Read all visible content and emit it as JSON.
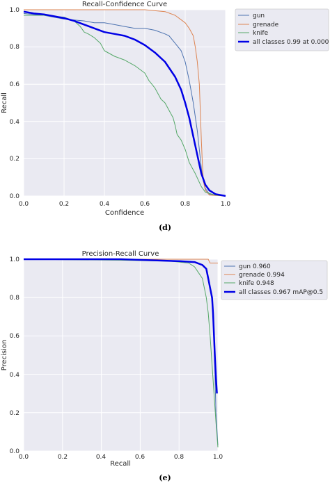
{
  "colors": {
    "plot_bg": "#eaeaf2",
    "grid": "#ffffff",
    "gun": "#4c72b0",
    "grenade": "#dd8452",
    "knife": "#55a868",
    "all": "#0000e6"
  },
  "chart_data": [
    {
      "type": "line",
      "title": "Recall-Confidence Curve",
      "xlabel": "Confidence",
      "ylabel": "Recall",
      "xlim": [
        0,
        1
      ],
      "ylim": [
        0,
        1
      ],
      "xticks": [
        "0.0",
        "0.2",
        "0.4",
        "0.6",
        "0.8",
        "1.0"
      ],
      "yticks": [
        "0.0",
        "0.2",
        "0.4",
        "0.6",
        "0.8",
        "1.0"
      ],
      "grid": true,
      "legend_position": "outside-right",
      "caption": "(d)",
      "series": [
        {
          "name": "gun",
          "color": "#4c72b0",
          "width": 1,
          "x": [
            0,
            0.05,
            0.1,
            0.15,
            0.2,
            0.3,
            0.35,
            0.4,
            0.45,
            0.5,
            0.55,
            0.6,
            0.65,
            0.7,
            0.72,
            0.75,
            0.78,
            0.8,
            0.82,
            0.84,
            0.86,
            0.87,
            0.88,
            0.89,
            0.9,
            0.92,
            0.95,
            1.0
          ],
          "y": [
            0.98,
            0.975,
            0.97,
            0.96,
            0.95,
            0.94,
            0.93,
            0.93,
            0.92,
            0.91,
            0.9,
            0.9,
            0.89,
            0.87,
            0.86,
            0.82,
            0.78,
            0.72,
            0.62,
            0.5,
            0.35,
            0.25,
            0.15,
            0.08,
            0.04,
            0.01,
            0.005,
            0.0
          ]
        },
        {
          "name": "grenade",
          "color": "#dd8452",
          "width": 1,
          "x": [
            0,
            0.1,
            0.2,
            0.3,
            0.4,
            0.5,
            0.6,
            0.7,
            0.75,
            0.8,
            0.82,
            0.84,
            0.85,
            0.86,
            0.87,
            0.875,
            0.88,
            0.885,
            0.89,
            0.9,
            0.92,
            1.0
          ],
          "y": [
            1.0,
            1.0,
            1.0,
            1.0,
            1.0,
            1.0,
            1.0,
            0.99,
            0.97,
            0.93,
            0.9,
            0.86,
            0.8,
            0.72,
            0.6,
            0.45,
            0.3,
            0.18,
            0.08,
            0.03,
            0.005,
            0.0
          ]
        },
        {
          "name": "knife",
          "color": "#55a868",
          "width": 1,
          "x": [
            0,
            0.1,
            0.2,
            0.25,
            0.28,
            0.3,
            0.32,
            0.35,
            0.38,
            0.4,
            0.45,
            0.5,
            0.55,
            0.6,
            0.62,
            0.65,
            0.68,
            0.7,
            0.72,
            0.74,
            0.75,
            0.76,
            0.78,
            0.8,
            0.82,
            0.85,
            0.88,
            0.9,
            0.95,
            1.0
          ],
          "y": [
            0.97,
            0.97,
            0.96,
            0.94,
            0.91,
            0.88,
            0.87,
            0.85,
            0.82,
            0.78,
            0.75,
            0.73,
            0.7,
            0.66,
            0.62,
            0.58,
            0.52,
            0.5,
            0.46,
            0.42,
            0.38,
            0.33,
            0.3,
            0.25,
            0.18,
            0.12,
            0.05,
            0.02,
            0.005,
            0.0
          ]
        },
        {
          "name": "all classes 0.99 at 0.000",
          "color": "#0000e6",
          "width": 2.5,
          "x": [
            0,
            0.05,
            0.1,
            0.15,
            0.2,
            0.25,
            0.3,
            0.35,
            0.4,
            0.45,
            0.5,
            0.55,
            0.6,
            0.65,
            0.7,
            0.75,
            0.78,
            0.8,
            0.82,
            0.84,
            0.86,
            0.88,
            0.9,
            0.92,
            0.95,
            1.0
          ],
          "y": [
            0.99,
            0.98,
            0.975,
            0.965,
            0.955,
            0.94,
            0.92,
            0.9,
            0.88,
            0.87,
            0.86,
            0.84,
            0.81,
            0.77,
            0.72,
            0.64,
            0.57,
            0.5,
            0.42,
            0.32,
            0.22,
            0.12,
            0.06,
            0.03,
            0.01,
            0.0
          ]
        }
      ]
    },
    {
      "type": "line",
      "title": "Precision-Recall Curve",
      "xlabel": "Recall",
      "ylabel": "Precision",
      "xlim": [
        0,
        1
      ],
      "ylim": [
        0,
        1
      ],
      "xticks": [
        "0.0",
        "0.2",
        "0.4",
        "0.6",
        "0.8",
        "1.0"
      ],
      "yticks": [
        "0.0",
        "0.2",
        "0.4",
        "0.6",
        "0.8",
        "1.0"
      ],
      "grid": true,
      "legend_position": "top-right",
      "caption": "(e)",
      "series": [
        {
          "name": "gun 0.960",
          "color": "#4c72b0",
          "width": 1,
          "x": [
            0,
            0.5,
            0.8,
            0.88,
            0.92,
            0.94,
            0.95,
            0.96,
            0.97,
            0.975,
            0.98,
            0.985,
            0.99,
            1.0
          ],
          "y": [
            1.0,
            1.0,
            0.99,
            0.985,
            0.97,
            0.95,
            0.9,
            0.85,
            0.78,
            0.7,
            0.55,
            0.4,
            0.2,
            0.03
          ]
        },
        {
          "name": "grenade 0.994",
          "color": "#dd8452",
          "width": 1,
          "x": [
            0,
            0.5,
            0.9,
            0.95,
            0.955,
            0.96,
            0.98,
            0.99,
            1.0
          ],
          "y": [
            1.0,
            1.0,
            1.0,
            1.0,
            0.99,
            0.98,
            0.98,
            0.98,
            0.98
          ]
        },
        {
          "name": "knife 0.948",
          "color": "#55a868",
          "width": 1,
          "x": [
            0,
            0.5,
            0.75,
            0.8,
            0.85,
            0.88,
            0.9,
            0.92,
            0.93,
            0.94,
            0.95,
            0.96,
            0.97,
            0.98,
            0.99,
            1.0
          ],
          "y": [
            1.0,
            0.995,
            0.99,
            0.985,
            0.98,
            0.96,
            0.93,
            0.9,
            0.85,
            0.8,
            0.72,
            0.6,
            0.45,
            0.3,
            0.15,
            0.02
          ]
        },
        {
          "name": "all classes 0.967 mAP@0.5",
          "color": "#0000e6",
          "width": 2.5,
          "x": [
            0,
            0.5,
            0.8,
            0.88,
            0.92,
            0.94,
            0.95,
            0.96,
            0.97,
            0.975,
            0.98,
            0.985,
            0.99,
            0.995
          ],
          "y": [
            1.0,
            1.0,
            0.99,
            0.985,
            0.97,
            0.95,
            0.9,
            0.85,
            0.8,
            0.72,
            0.6,
            0.48,
            0.38,
            0.3
          ]
        }
      ]
    }
  ]
}
